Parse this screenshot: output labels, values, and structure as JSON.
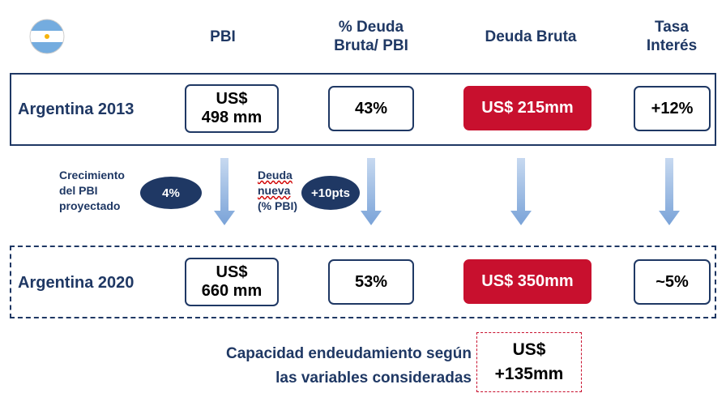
{
  "headers": {
    "pbi": "PBI",
    "deuda_pbi": [
      "% Deuda",
      "Bruta/ PBI"
    ],
    "deuda_bruta": "Deuda Bruta",
    "tasa": [
      "Tasa",
      "Interés"
    ]
  },
  "rows": [
    {
      "label": "Argentina 2013",
      "pbi": [
        "US$",
        "498 mm"
      ],
      "deuda_pbi": "43%",
      "deuda_bruta": "US$ 215mm",
      "tasa": "+12%"
    },
    {
      "label": "Argentina 2020",
      "pbi": [
        "US$",
        "660 mm"
      ],
      "deuda_pbi": "53%",
      "deuda_bruta": "US$ 350mm",
      "tasa": "~5%"
    }
  ],
  "drivers": [
    {
      "text": [
        "Crecimiento",
        "del PBI",
        "proyectado"
      ],
      "badge": "4%"
    },
    {
      "text": [
        "Deuda",
        "nueva",
        "(% PBI)"
      ],
      "badge": "+10pts"
    }
  ],
  "capacity": {
    "text": [
      "Capacidad endeudamiento según",
      "las variables consideradas"
    ],
    "value": [
      "US$",
      "+135mm"
    ]
  }
}
